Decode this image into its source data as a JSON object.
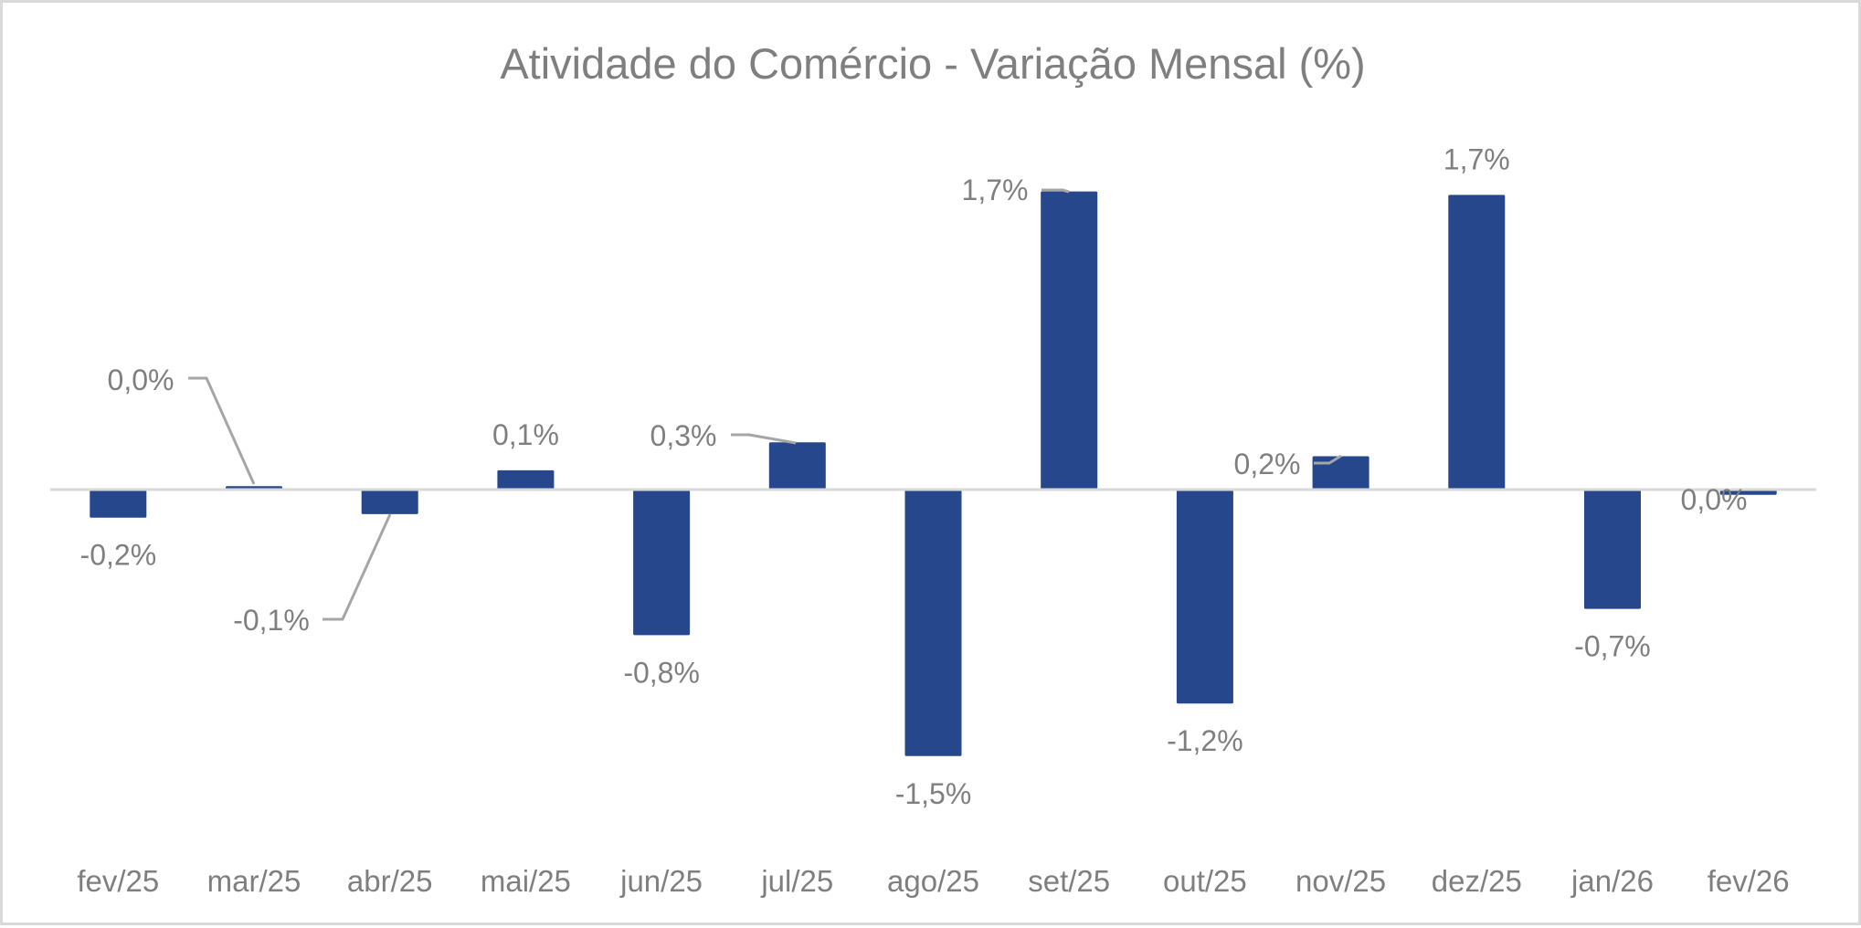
{
  "chart_data": {
    "type": "bar",
    "title": "Atividade do Comércio - Variação Mensal (%)",
    "xlabel": "",
    "ylabel": "",
    "categories": [
      "fev/25",
      "mar/25",
      "abr/25",
      "mai/25",
      "jun/25",
      "jul/25",
      "ago/25",
      "set/25",
      "out/25",
      "nov/25",
      "dez/25",
      "jan/26",
      "fev/26"
    ],
    "values": [
      -0.16,
      0.02,
      -0.14,
      0.11,
      -0.83,
      0.27,
      -1.52,
      1.7,
      -1.22,
      0.19,
      1.68,
      -0.68,
      -0.03
    ],
    "data_labels": [
      "-0,2%",
      "0,0%",
      "-0,1%",
      "0,1%",
      "-0,8%",
      "0,3%",
      "-1,5%",
      "1,7%",
      "-1,2%",
      "0,2%",
      "1,7%",
      "-0,7%",
      "0,0%"
    ],
    "series": [
      {
        "name": "Variação Mensal (%)",
        "color": "#26478c"
      }
    ],
    "ylim": [
      -2.0,
      2.0
    ],
    "grid": false,
    "legend": "none",
    "y_axis_visible": false
  }
}
